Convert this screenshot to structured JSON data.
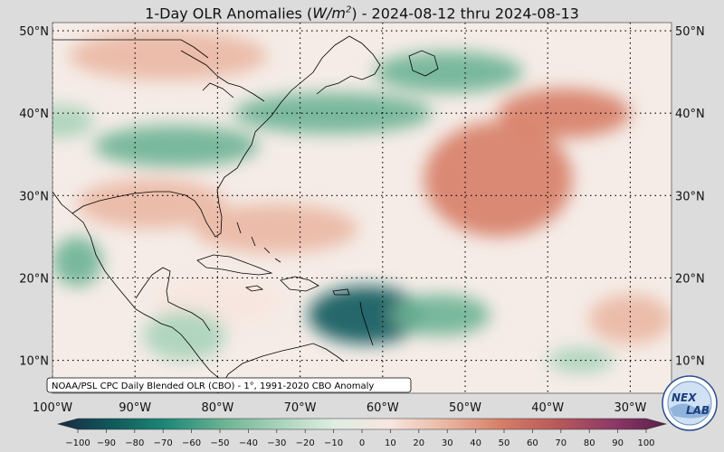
{
  "title": {
    "prefix": "1-Day OLR Anomalies (",
    "unit_base": "W/m",
    "unit_exp": "2",
    "suffix": ") - 2024-08-12 thru 2024-08-13"
  },
  "map": {
    "lon_range": [
      -100,
      -25
    ],
    "lat_range": [
      6,
      51
    ],
    "lat_labels": [
      "10°N",
      "20°N",
      "30°N",
      "40°N",
      "50°N"
    ],
    "lat_values": [
      10,
      20,
      30,
      40,
      50
    ],
    "lon_labels": [
      "100°W",
      "90°W",
      "80°W",
      "70°W",
      "60°W",
      "50°W",
      "40°W",
      "30°W"
    ],
    "lon_values": [
      -100,
      -90,
      -80,
      -70,
      -60,
      -50,
      -40,
      -30
    ],
    "gridlines": true
  },
  "source_note": "NOAA/PSL CPC Daily Blended OLR (CBO) - 1°, 1991-2020 CBO Anomaly",
  "colorbar": {
    "ticks": [
      "−100",
      "−90",
      "−80",
      "−70",
      "−60",
      "−50",
      "−40",
      "−30",
      "−20",
      "−10",
      "0",
      "10",
      "20",
      "30",
      "40",
      "50",
      "60",
      "70",
      "80",
      "90",
      "100"
    ],
    "range": [
      -100,
      100
    ],
    "negative_colors": [
      "#1b2a45",
      "#0f5a5c",
      "#1f8a78",
      "#6cb394",
      "#a9d3ba",
      "#dfeee2"
    ],
    "positive_colors": [
      "#f7e6df",
      "#eab7a3",
      "#d77e67",
      "#b85a5a",
      "#8f3a67",
      "#5a1e4d"
    ]
  },
  "anomaly_regions": [
    {
      "name": "deep-convection-east-caribbean",
      "lon": -62,
      "lat": 15.5,
      "rlon": 7,
      "rlat": 3.5,
      "value": -75
    },
    {
      "name": "convection-tropical-atlantic",
      "lon": -53,
      "lat": 15.5,
      "rlon": 6,
      "rlat": 2.5,
      "value": -40
    },
    {
      "name": "atlantic-moist-band-west",
      "lon": -85,
      "lat": 36,
      "rlon": 10,
      "rlat": 2.5,
      "value": -40
    },
    {
      "name": "atlantic-moist-band-central",
      "lon": -66,
      "lat": 40,
      "rlon": 12,
      "rlat": 2.5,
      "value": -45
    },
    {
      "name": "atlantic-moist-band-east",
      "lon": -52,
      "lat": 45,
      "rlon": 9,
      "rlat": 2.5,
      "value": -45
    },
    {
      "name": "dry-central-atlantic",
      "lon": -46,
      "lat": 32,
      "rlon": 9,
      "rlat": 7,
      "value": 35
    },
    {
      "name": "dry-north-atlantic",
      "lon": -38,
      "lat": 40,
      "rlon": 8,
      "rlat": 3,
      "value": 40
    },
    {
      "name": "dry-bahamas",
      "lon": -73,
      "lat": 26,
      "rlon": 10,
      "rlat": 3,
      "value": 30
    },
    {
      "name": "dry-gulf-mexico",
      "lon": -88,
      "lat": 29,
      "rlon": 9,
      "rlat": 3,
      "value": 25
    },
    {
      "name": "dry-canada",
      "lon": -86,
      "lat": 47,
      "rlon": 12,
      "rlat": 3,
      "value": 25
    },
    {
      "name": "dry-caribbean-west",
      "lon": -80,
      "lat": 17,
      "rlon": 8,
      "rlat": 3,
      "value": 15
    },
    {
      "name": "moist-mexico",
      "lon": -97,
      "lat": 22,
      "rlon": 3,
      "rlat": 3,
      "value": -35
    },
    {
      "name": "moist-central-america",
      "lon": -84,
      "lat": 13,
      "rlon": 5,
      "rlat": 3,
      "value": -25
    },
    {
      "name": "moist-gulf-west",
      "lon": -99,
      "lat": 39,
      "rlon": 4,
      "rlat": 2,
      "value": -30
    },
    {
      "name": "moist-east-atlantic",
      "lon": -36,
      "lat": 10,
      "rlon": 4,
      "rlat": 1.5,
      "value": -25
    },
    {
      "name": "dry-east-atlantic-south",
      "lon": -30,
      "lat": 15,
      "rlon": 5,
      "rlat": 3,
      "value": 25
    }
  ]
}
